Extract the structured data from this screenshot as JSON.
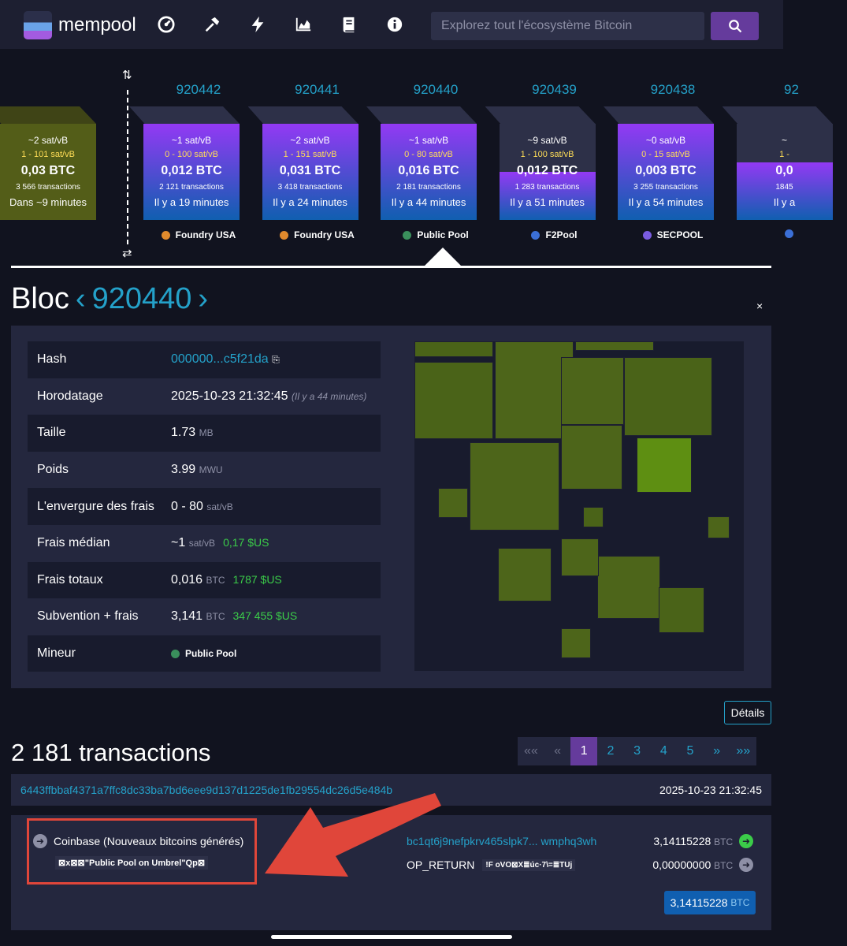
{
  "nav": {
    "logo_text": "mempool",
    "search_placeholder": "Explorez tout l'écosystème Bitcoin"
  },
  "mempool_block": {
    "fee": "~2 sat/vB",
    "range": "1 - 101 sat/vB",
    "btc": "0,03 BTC",
    "tx": "3 566 transactions",
    "time": "Dans ~9 minutes"
  },
  "blocks": [
    {
      "height": "920442",
      "fee": "~1 sat/vB",
      "range": "0 - 100 sat/vB",
      "btc": "0,012 BTC",
      "tx": "2 121 transactions",
      "time": "Il y a 19 minutes",
      "pool": "Foundry USA",
      "fill": 1.0
    },
    {
      "height": "920441",
      "fee": "~2 sat/vB",
      "range": "1 - 151 sat/vB",
      "btc": "0,031 BTC",
      "tx": "3 418 transactions",
      "time": "Il y a 24 minutes",
      "pool": "Foundry USA",
      "fill": 1.0
    },
    {
      "height": "920440",
      "fee": "~1 sat/vB",
      "range": "0 - 80 sat/vB",
      "btc": "0,016 BTC",
      "tx": "2 181 transactions",
      "time": "Il y a 44 minutes",
      "pool": "Public Pool",
      "fill": 1.0
    },
    {
      "height": "920439",
      "fee": "~9 sat/vB",
      "range": "1 - 100 sat/vB",
      "btc": "0,012 BTC",
      "tx": "1 283 transactions",
      "time": "Il y a 51 minutes",
      "pool": "F2Pool",
      "fill": 0.5
    },
    {
      "height": "920438",
      "fee": "~0 sat/vB",
      "range": "0 - 15 sat/vB",
      "btc": "0,003 BTC",
      "tx": "3 255 transactions",
      "time": "Il y a 54 minutes",
      "pool": "SECPOOL",
      "fill": 1.0
    },
    {
      "height": "92",
      "fee": "~",
      "range": "1 -",
      "btc": "0,0",
      "tx": "1845",
      "time": "Il y a",
      "pool": "",
      "fill": 0.6
    }
  ],
  "block": {
    "title_label": "Bloc",
    "height": "920440",
    "close": "×"
  },
  "details": {
    "hash_label": "Hash",
    "hash_value": "000000...c5f21da",
    "ts_label": "Horodatage",
    "ts_value": "2025-10-23 21:32:45",
    "ts_ago": "(Il y a 44 minutes)",
    "size_label": "Taille",
    "size_value": "1.73",
    "size_unit": "MB",
    "weight_label": "Poids",
    "weight_value": "3.99",
    "weight_unit": "MWU",
    "range_label": "L'envergure des frais",
    "range_value": "0 - 80",
    "range_unit": "sat/vB",
    "median_label": "Frais médian",
    "median_value": "~1",
    "median_unit": "sat/vB",
    "median_usd": "0,17 $US",
    "total_label": "Frais totaux",
    "total_value": "0,016",
    "total_unit": "BTC",
    "total_usd": "1787 $US",
    "subsidy_label": "Subvention + frais",
    "subsidy_value": "3,141",
    "subsidy_unit": "BTC",
    "subsidy_usd": "347 455 $US",
    "miner_label": "Mineur",
    "miner_value": "Public Pool",
    "details_button": "Détails"
  },
  "transactions": {
    "count": "2 181 transactions",
    "pages": [
      "««",
      "«",
      "1",
      "2",
      "3",
      "4",
      "5",
      "»",
      "»»"
    ],
    "active_page": "1",
    "txid": "6443ffbbaf4371a7ffc8dc33ba7bd6eee9d137d1225de1fb29554dc26d5e484b",
    "tx_time": "2025-10-23 21:32:45",
    "coinbase_label": "Coinbase (Nouveaux bitcoins générés)",
    "scriptsig": "⊠x⊠⊠\"Public Pool on Umbrel\"Qp⊠",
    "out1_addr": "bc1qt6j9nefpkrv465slpk7... wmphq3wh",
    "out1_amount": "3,14115228",
    "out1_unit": "BTC",
    "out2_label": "OP_RETURN",
    "out2_data": "!F oVO⊠X≣úc·7\\=≣TUj",
    "out2_amount": "0,00000000",
    "out2_unit": "BTC",
    "total_amount": "3,14115228",
    "total_unit": "BTC"
  },
  "colors": {
    "accent": "#24a1c9",
    "purple": "#653b9c",
    "green": "#3bcc49",
    "annotation_red": "#e0463a"
  }
}
